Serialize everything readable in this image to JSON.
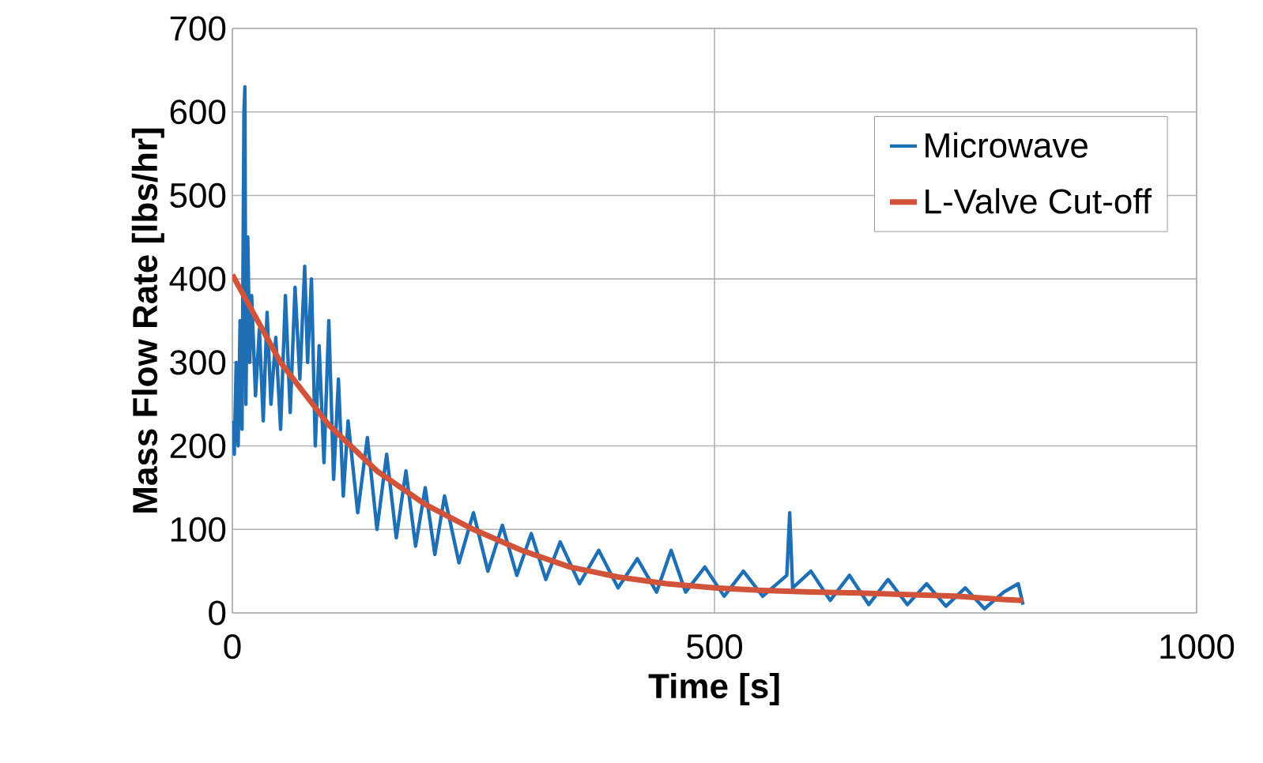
{
  "chart_data": {
    "type": "line",
    "xlabel": "Time [s]",
    "ylabel": "Mass Flow Rate [lbs/hr]",
    "xlim": [
      0,
      1000
    ],
    "xticks": [
      0,
      500,
      1000
    ],
    "ylim": [
      0,
      700
    ],
    "yticks": [
      0,
      100,
      200,
      300,
      400,
      500,
      600,
      700
    ],
    "grid": true,
    "legend": "top right",
    "line_style": "solid",
    "series": [
      {
        "name": "Microwave",
        "color": "#1f6fb4",
        "x": [
          0,
          2,
          4,
          6,
          8,
          10,
          12,
          13,
          14,
          16,
          18,
          20,
          24,
          28,
          32,
          36,
          40,
          45,
          50,
          55,
          60,
          65,
          70,
          75,
          78,
          82,
          86,
          90,
          95,
          100,
          105,
          110,
          115,
          120,
          130,
          140,
          150,
          160,
          170,
          180,
          190,
          200,
          210,
          220,
          235,
          250,
          265,
          280,
          295,
          310,
          325,
          340,
          360,
          380,
          400,
          420,
          440,
          455,
          470,
          490,
          510,
          530,
          550,
          575,
          578,
          581,
          600,
          620,
          640,
          660,
          680,
          700,
          720,
          740,
          760,
          780,
          800,
          815,
          820
        ],
        "values": [
          230,
          190,
          300,
          200,
          350,
          220,
          600,
          630,
          250,
          450,
          300,
          380,
          260,
          340,
          230,
          360,
          250,
          330,
          220,
          380,
          240,
          390,
          280,
          415,
          300,
          400,
          200,
          320,
          180,
          350,
          160,
          280,
          140,
          230,
          120,
          210,
          100,
          190,
          90,
          170,
          80,
          150,
          70,
          140,
          60,
          120,
          50,
          105,
          45,
          95,
          40,
          85,
          35,
          75,
          30,
          65,
          25,
          75,
          25,
          55,
          20,
          50,
          20,
          45,
          120,
          30,
          50,
          15,
          45,
          10,
          40,
          10,
          35,
          8,
          30,
          5,
          25,
          35,
          10
        ]
      },
      {
        "name": "L-Valve Cut-off",
        "color": "#d0533a",
        "x": [
          0,
          50,
          100,
          150,
          200,
          250,
          300,
          350,
          400,
          450,
          500,
          550,
          600,
          650,
          700,
          750,
          800,
          820
        ],
        "values": [
          405,
          300,
          225,
          170,
          130,
          100,
          75,
          55,
          43,
          35,
          30,
          27,
          25,
          24,
          22,
          20,
          16,
          15
        ]
      }
    ]
  }
}
